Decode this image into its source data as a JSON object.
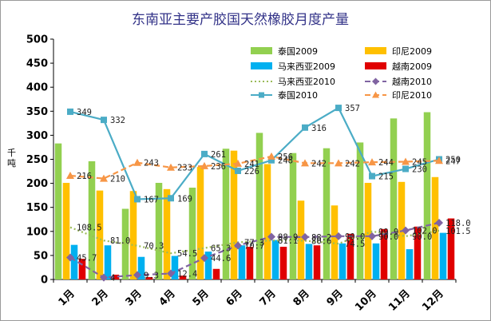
{
  "chart_data": {
    "type": "bar",
    "title": "东南亚主要产胶国天然橡胶月度产量",
    "ylabel": "千吨",
    "xlabel": "",
    "ylim": [
      0,
      500
    ],
    "ytick_step": 50,
    "grid": false,
    "legend_position": "top-right",
    "categories": [
      "1月",
      "2月",
      "3月",
      "4月",
      "5月",
      "6月",
      "7月",
      "8月",
      "9月",
      "10月",
      "11月",
      "12月"
    ],
    "bar_series": [
      {
        "name": "泰国2009",
        "color": "#92D050",
        "values": [
          283,
          246,
          147,
          201,
          191,
          272,
          305,
          263,
          273,
          285,
          335,
          348
        ]
      },
      {
        "name": "印尼2009",
        "color": "#FFC000",
        "values": [
          201,
          185,
          184,
          188,
          234,
          268,
          240,
          164,
          154,
          201,
          203,
          213
        ]
      },
      {
        "name": "马来西亚2009",
        "color": "#00B0F0",
        "values": [
          72,
          71,
          47,
          49,
          58,
          71,
          82,
          74,
          75,
          75,
          63,
          97
        ]
      },
      {
        "name": "越南2009",
        "color": "#E00000",
        "values": [
          43,
          10,
          5,
          8,
          22,
          68,
          68,
          71,
          95,
          105,
          110,
          127
        ]
      }
    ],
    "line_series": [
      {
        "name": "马来西亚2010",
        "color": "#9BBB59",
        "style": "dotted",
        "marker": "none",
        "values": [
          108.5,
          81.0,
          70.3,
          54.5,
          65.3,
          77.3,
          81.1,
          80.6,
          74.5,
          99.9,
          90.0,
          101.5
        ],
        "labels": [
          "108.5",
          "81.0",
          "70.3",
          "54.5",
          "65.3",
          "77.3",
          "81.1",
          "80.6",
          "74.5",
          "99.9",
          "90.0",
          "101.5"
        ]
      },
      {
        "name": "越南2010",
        "color": "#8064A2",
        "style": "dashed",
        "marker": "diamond",
        "values": [
          45.7,
          4,
          9.3,
          12.4,
          44.6,
          70.7,
          88.9,
          88.2,
          90.0,
          90.0,
          102.0,
          118.0
        ],
        "labels": [
          "45.7",
          "4",
          "9.3",
          "12.4",
          "44.6",
          "70.7",
          "88.9",
          "88.2",
          "90.0",
          "90.0",
          "102.0",
          "118.0"
        ]
      },
      {
        "name": "泰国2010",
        "color": "#4BACC6",
        "style": "solid",
        "marker": "square",
        "values": [
          349,
          332,
          167,
          169,
          261,
          226,
          248,
          316,
          357,
          215,
          230,
          250
        ],
        "labels": [
          "349",
          "332",
          "167",
          "169",
          "261",
          "226",
          "248",
          "316",
          "357",
          "215",
          "230",
          "250"
        ]
      },
      {
        "name": "印尼2010",
        "color": "#F79646",
        "style": "dashed",
        "marker": "triangle",
        "values": [
          216,
          210,
          243,
          233,
          236,
          241,
          256,
          242,
          242,
          244,
          245,
          247
        ],
        "labels": [
          "216",
          "210",
          "243",
          "233",
          "236",
          "241",
          "256",
          "242",
          "242",
          "244",
          "245",
          "247"
        ]
      }
    ]
  }
}
